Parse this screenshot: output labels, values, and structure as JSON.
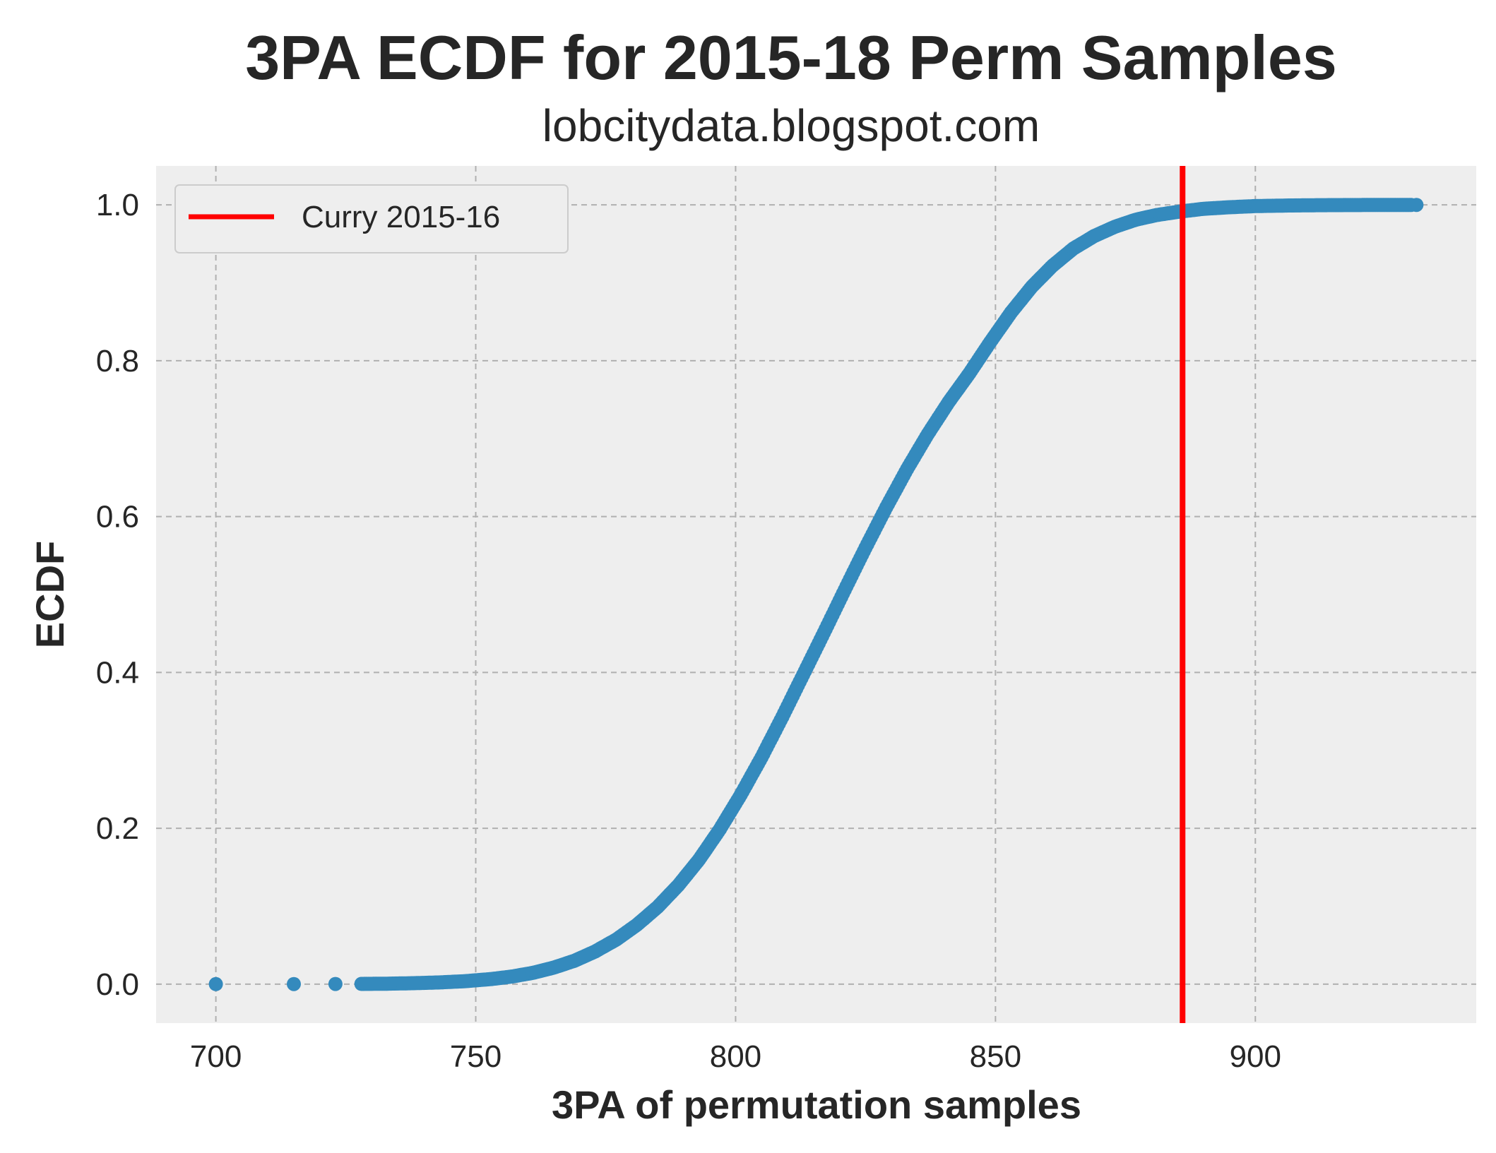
{
  "chart_data": {
    "type": "scatter",
    "title": "3PA ECDF for 2015-18 Perm Samples",
    "subtitle": "lobcitydata.blogspot.com",
    "xlabel": "3PA of permutation samples",
    "ylabel": "ECDF",
    "xlim": [
      688.5,
      942.5
    ],
    "ylim": [
      -0.05,
      1.05
    ],
    "xticks": [
      700,
      750,
      800,
      850,
      900
    ],
    "yticks": [
      0.0,
      0.2,
      0.4,
      0.6,
      0.8,
      1.0
    ],
    "xtick_labels": [
      "700",
      "750",
      "800",
      "850",
      "900"
    ],
    "ytick_labels": [
      "0.0",
      "0.2",
      "0.4",
      "0.6",
      "0.8",
      "1.0"
    ],
    "grid": true,
    "legend_position": "top-left",
    "series": [
      {
        "name": "",
        "kind": "scatter",
        "color": "#348abd",
        "x": [
          700,
          715,
          723,
          728,
          733,
          738,
          743,
          748,
          753,
          757,
          761,
          765,
          769,
          773,
          777,
          781,
          785,
          789,
          793,
          797,
          801,
          805,
          809,
          813,
          817,
          821,
          825,
          829,
          833,
          837,
          841,
          845,
          849,
          853,
          857,
          861,
          865,
          869,
          873,
          877,
          881,
          885,
          890,
          895,
          900,
          906,
          912,
          918,
          923,
          930
        ],
        "y": [
          0.0,
          0.0001,
          0.0002,
          0.0003,
          0.0006,
          0.0012,
          0.0022,
          0.0038,
          0.0065,
          0.0098,
          0.0145,
          0.0212,
          0.03,
          0.042,
          0.057,
          0.076,
          0.099,
          0.127,
          0.16,
          0.199,
          0.243,
          0.291,
          0.343,
          0.397,
          0.451,
          0.506,
          0.56,
          0.612,
          0.661,
          0.706,
          0.747,
          0.784,
          0.824,
          0.862,
          0.895,
          0.922,
          0.944,
          0.96,
          0.972,
          0.981,
          0.987,
          0.991,
          0.995,
          0.997,
          0.9985,
          0.9992,
          0.9996,
          0.9998,
          0.9999,
          1.0
        ]
      },
      {
        "name": "Curry 2015-16",
        "kind": "vline",
        "color": "#ff0000",
        "x": 886
      }
    ]
  }
}
